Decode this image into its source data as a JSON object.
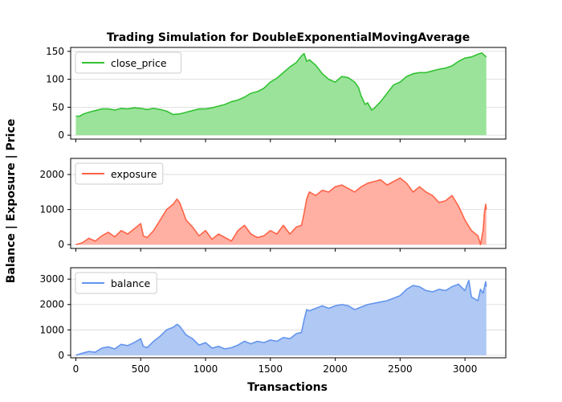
{
  "chart_data": {
    "type": "area",
    "title": "Trading Simulation for DoubleExponentialMovingAverage",
    "xlabel": "Transactions",
    "ylabel": "Balance | Exposure | Price",
    "xlim": [
      -40,
      3315
    ],
    "xticks": [
      0,
      500,
      1000,
      1500,
      2000,
      2500,
      3000
    ],
    "grid": "horizontal",
    "legend_placement": "top-left",
    "panels": [
      {
        "series_name": "close_price",
        "color": "#33c233",
        "fill_color": "#9be39b",
        "ylim": [
          -7,
          157
        ],
        "yticks": [
          0,
          50,
          100,
          150
        ],
        "points": [
          [
            0,
            34
          ],
          [
            30,
            34
          ],
          [
            60,
            38
          ],
          [
            100,
            41
          ],
          [
            150,
            44
          ],
          [
            200,
            47
          ],
          [
            250,
            47
          ],
          [
            300,
            45
          ],
          [
            350,
            48
          ],
          [
            400,
            47
          ],
          [
            450,
            49
          ],
          [
            500,
            48
          ],
          [
            550,
            46
          ],
          [
            600,
            48
          ],
          [
            650,
            46
          ],
          [
            700,
            43
          ],
          [
            750,
            37
          ],
          [
            800,
            38
          ],
          [
            850,
            41
          ],
          [
            900,
            44
          ],
          [
            950,
            47
          ],
          [
            1000,
            47
          ],
          [
            1050,
            49
          ],
          [
            1100,
            52
          ],
          [
            1150,
            55
          ],
          [
            1200,
            60
          ],
          [
            1250,
            63
          ],
          [
            1300,
            68
          ],
          [
            1350,
            75
          ],
          [
            1400,
            78
          ],
          [
            1450,
            84
          ],
          [
            1500,
            95
          ],
          [
            1550,
            102
          ],
          [
            1600,
            112
          ],
          [
            1650,
            122
          ],
          [
            1700,
            130
          ],
          [
            1740,
            142
          ],
          [
            1760,
            146
          ],
          [
            1780,
            132
          ],
          [
            1800,
            135
          ],
          [
            1850,
            125
          ],
          [
            1900,
            110
          ],
          [
            1950,
            100
          ],
          [
            2000,
            95
          ],
          [
            2050,
            105
          ],
          [
            2100,
            103
          ],
          [
            2150,
            95
          ],
          [
            2180,
            85
          ],
          [
            2200,
            70
          ],
          [
            2230,
            55
          ],
          [
            2250,
            58
          ],
          [
            2280,
            45
          ],
          [
            2300,
            48
          ],
          [
            2350,
            60
          ],
          [
            2400,
            75
          ],
          [
            2450,
            90
          ],
          [
            2500,
            95
          ],
          [
            2550,
            105
          ],
          [
            2600,
            110
          ],
          [
            2650,
            112
          ],
          [
            2700,
            112
          ],
          [
            2750,
            115
          ],
          [
            2800,
            118
          ],
          [
            2850,
            120
          ],
          [
            2900,
            124
          ],
          [
            2950,
            132
          ],
          [
            3000,
            138
          ],
          [
            3050,
            140
          ],
          [
            3100,
            145
          ],
          [
            3130,
            147
          ],
          [
            3150,
            143
          ],
          [
            3165,
            140
          ]
        ]
      },
      {
        "series_name": "exposure",
        "color": "#ff6347",
        "fill_color": "#ffb0a3",
        "ylim": [
          -110,
          2460
        ],
        "yticks": [
          0,
          1000,
          2000
        ],
        "points": [
          [
            0,
            0
          ],
          [
            50,
            50
          ],
          [
            100,
            180
          ],
          [
            150,
            100
          ],
          [
            200,
            250
          ],
          [
            250,
            350
          ],
          [
            300,
            220
          ],
          [
            350,
            400
          ],
          [
            400,
            300
          ],
          [
            450,
            450
          ],
          [
            500,
            600
          ],
          [
            520,
            250
          ],
          [
            550,
            200
          ],
          [
            600,
            400
          ],
          [
            650,
            700
          ],
          [
            700,
            1000
          ],
          [
            750,
            1150
          ],
          [
            780,
            1300
          ],
          [
            800,
            1200
          ],
          [
            850,
            700
          ],
          [
            900,
            500
          ],
          [
            950,
            250
          ],
          [
            1000,
            400
          ],
          [
            1050,
            150
          ],
          [
            1100,
            300
          ],
          [
            1150,
            200
          ],
          [
            1200,
            100
          ],
          [
            1250,
            400
          ],
          [
            1300,
            550
          ],
          [
            1350,
            300
          ],
          [
            1400,
            200
          ],
          [
            1450,
            250
          ],
          [
            1500,
            400
          ],
          [
            1550,
            300
          ],
          [
            1600,
            550
          ],
          [
            1650,
            300
          ],
          [
            1700,
            500
          ],
          [
            1740,
            550
          ],
          [
            1760,
            900
          ],
          [
            1780,
            1300
          ],
          [
            1800,
            1500
          ],
          [
            1850,
            1400
          ],
          [
            1900,
            1550
          ],
          [
            1950,
            1500
          ],
          [
            2000,
            1650
          ],
          [
            2050,
            1700
          ],
          [
            2100,
            1600
          ],
          [
            2150,
            1500
          ],
          [
            2200,
            1650
          ],
          [
            2250,
            1750
          ],
          [
            2300,
            1800
          ],
          [
            2350,
            1850
          ],
          [
            2400,
            1700
          ],
          [
            2450,
            1800
          ],
          [
            2500,
            1900
          ],
          [
            2550,
            1750
          ],
          [
            2600,
            1500
          ],
          [
            2650,
            1650
          ],
          [
            2700,
            1500
          ],
          [
            2750,
            1400
          ],
          [
            2800,
            1200
          ],
          [
            2850,
            1250
          ],
          [
            2900,
            1400
          ],
          [
            2950,
            1100
          ],
          [
            3000,
            700
          ],
          [
            3050,
            400
          ],
          [
            3100,
            250
          ],
          [
            3120,
            0
          ],
          [
            3140,
            400
          ],
          [
            3150,
            900
          ],
          [
            3160,
            1150
          ],
          [
            3165,
            1000
          ]
        ]
      },
      {
        "series_name": "balance",
        "color": "#6495ed",
        "fill_color": "#afc8f4",
        "ylim": [
          -100,
          3450
        ],
        "yticks": [
          0,
          1000,
          2000,
          3000
        ],
        "points": [
          [
            0,
            0
          ],
          [
            50,
            80
          ],
          [
            100,
            150
          ],
          [
            150,
            120
          ],
          [
            200,
            280
          ],
          [
            250,
            330
          ],
          [
            300,
            250
          ],
          [
            350,
            430
          ],
          [
            400,
            380
          ],
          [
            450,
            500
          ],
          [
            500,
            650
          ],
          [
            520,
            350
          ],
          [
            550,
            300
          ],
          [
            600,
            550
          ],
          [
            650,
            750
          ],
          [
            700,
            1000
          ],
          [
            750,
            1100
          ],
          [
            780,
            1220
          ],
          [
            800,
            1150
          ],
          [
            850,
            800
          ],
          [
            900,
            650
          ],
          [
            950,
            400
          ],
          [
            1000,
            500
          ],
          [
            1050,
            280
          ],
          [
            1100,
            350
          ],
          [
            1150,
            250
          ],
          [
            1200,
            300
          ],
          [
            1250,
            400
          ],
          [
            1300,
            550
          ],
          [
            1350,
            450
          ],
          [
            1400,
            550
          ],
          [
            1450,
            500
          ],
          [
            1500,
            600
          ],
          [
            1550,
            550
          ],
          [
            1600,
            700
          ],
          [
            1650,
            650
          ],
          [
            1700,
            850
          ],
          [
            1740,
            900
          ],
          [
            1760,
            1400
          ],
          [
            1780,
            1800
          ],
          [
            1800,
            1750
          ],
          [
            1850,
            1850
          ],
          [
            1900,
            1950
          ],
          [
            1950,
            1850
          ],
          [
            2000,
            1950
          ],
          [
            2050,
            2000
          ],
          [
            2100,
            1950
          ],
          [
            2150,
            1800
          ],
          [
            2200,
            1900
          ],
          [
            2250,
            2000
          ],
          [
            2300,
            2050
          ],
          [
            2350,
            2100
          ],
          [
            2400,
            2150
          ],
          [
            2450,
            2250
          ],
          [
            2500,
            2350
          ],
          [
            2550,
            2600
          ],
          [
            2600,
            2750
          ],
          [
            2650,
            2700
          ],
          [
            2700,
            2550
          ],
          [
            2750,
            2500
          ],
          [
            2800,
            2600
          ],
          [
            2850,
            2550
          ],
          [
            2900,
            2700
          ],
          [
            2950,
            2800
          ],
          [
            3000,
            2550
          ],
          [
            3030,
            2950
          ],
          [
            3050,
            2300
          ],
          [
            3100,
            2150
          ],
          [
            3120,
            2600
          ],
          [
            3140,
            2450
          ],
          [
            3160,
            2900
          ],
          [
            3165,
            2700
          ]
        ]
      }
    ]
  }
}
